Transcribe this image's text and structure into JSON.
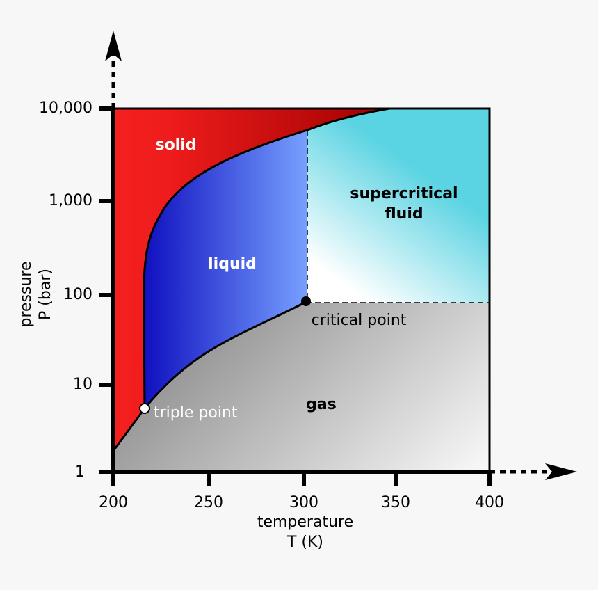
{
  "regions": {
    "solid": "solid",
    "liquid": "liquid",
    "supercritical": [
      "supercritical",
      "fluid"
    ],
    "gas": "gas"
  },
  "points": {
    "critical": "critical point",
    "triple": "triple point"
  },
  "x_axis": {
    "label": [
      "temperature",
      "T (K)"
    ],
    "ticks": [
      "200",
      "250",
      "300",
      "350",
      "400"
    ]
  },
  "y_axis": {
    "label": [
      "pressure",
      "P (bar)"
    ],
    "ticks": [
      "10,000",
      "1,000",
      "100",
      "10",
      "1"
    ]
  }
}
